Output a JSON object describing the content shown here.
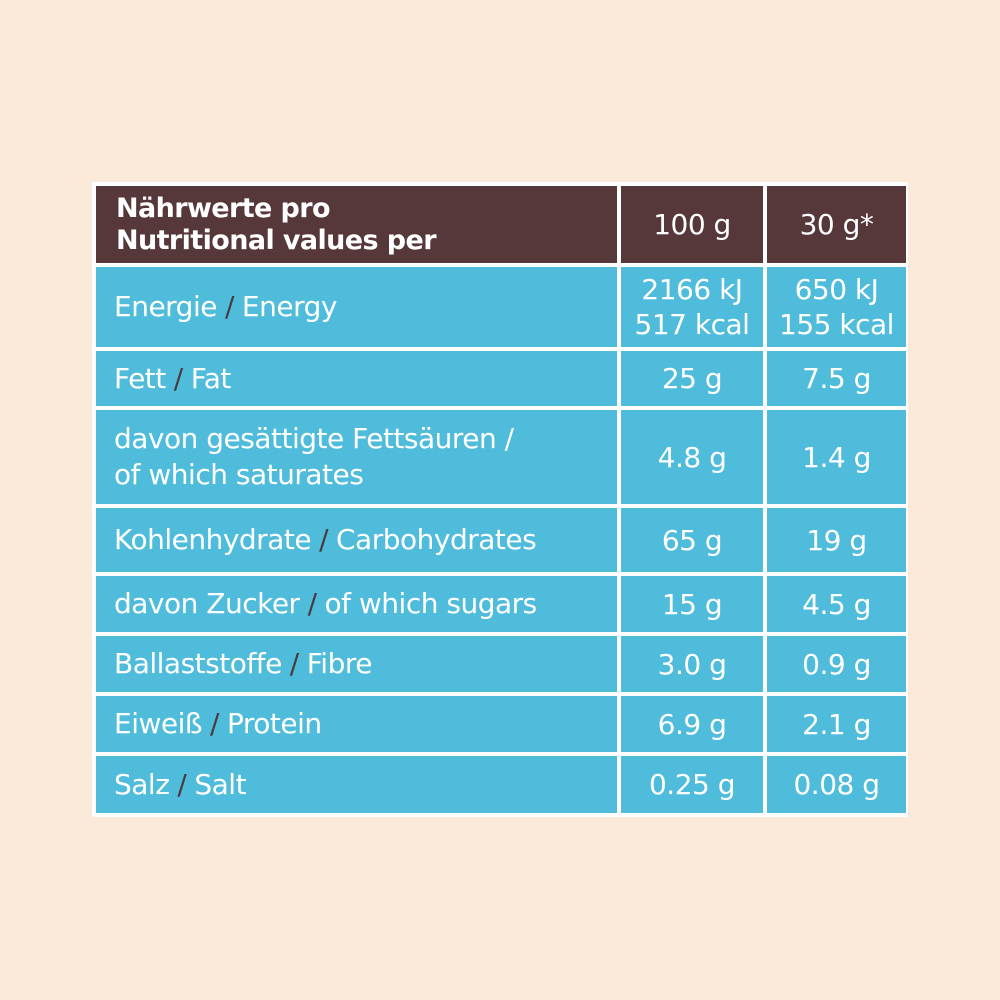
{
  "header": {
    "label_de": "Nährwerte pro",
    "label_en": "Nutritional values per",
    "col1": "100 g",
    "col2": "30 g*"
  },
  "rows": [
    {
      "de": "Energie",
      "sep": "/",
      "en": "Energy",
      "v1_a": "2166 kJ",
      "v1_b": "517 kcal",
      "v2_a": "650 kJ",
      "v2_b": "155 kcal"
    },
    {
      "de": "Fett",
      "sep": "/",
      "en": "Fat",
      "v1": "25 g",
      "v2": "7.5 g"
    },
    {
      "de": "davon gesättigte Fettsäuren /",
      "en": "of which saturates",
      "v1": "4.8 g",
      "v2": "1.4 g"
    },
    {
      "de": "Kohlenhydrate",
      "sep": "/",
      "en": "Carbohydrates",
      "v1": "65 g",
      "v2": "19 g"
    },
    {
      "de": "davon Zucker",
      "sep": "/",
      "en": "of which sugars",
      "v1": "15 g",
      "v2": "4.5 g"
    },
    {
      "de": "Ballaststoffe",
      "sep": "/",
      "en": "Fibre",
      "v1": "3.0 g",
      "v2": "0.9 g"
    },
    {
      "de": "Eiweiß",
      "sep": "/",
      "en": "Protein",
      "v1": "6.9 g",
      "v2": "2.1 g"
    },
    {
      "de": "Salz",
      "sep": "/",
      "en": "Salt",
      "v1": "0.25 g",
      "v2": "0.08 g"
    }
  ],
  "colors": {
    "background": "#fbe9da",
    "header": "#56373a",
    "cell": "#4fbcdc",
    "separator": "#4a3a3d",
    "grid": "#ffffff"
  }
}
